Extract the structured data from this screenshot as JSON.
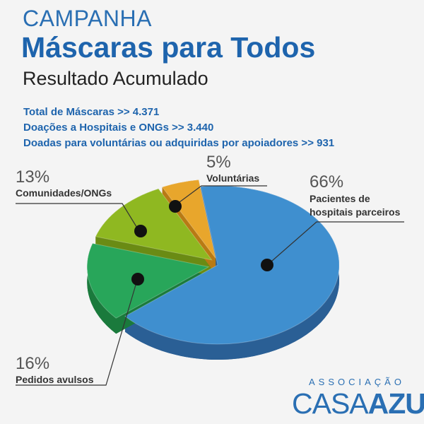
{
  "header": {
    "campaign": "CAMPANHA",
    "title": "Máscaras para Todos",
    "subtitle": "Resultado Acumulado"
  },
  "stats": [
    "Total de Máscaras >> 4.371",
    "Doações a Hospitais e ONGs >> 3.440",
    "Doadas para voluntárias ou adquiridas por apoiadores >> 931"
  ],
  "chart_data": {
    "type": "pie",
    "title": "",
    "slices": [
      {
        "label": "Pacientes de hospitais parceiros",
        "label_lines": [
          "Pacientes de",
          "hospitais parceiros"
        ],
        "percent": 66,
        "percent_label": "66%",
        "color": "#3f8fcf",
        "side_color": "#2a5f95"
      },
      {
        "label": "Pedidos avulsos",
        "label_lines": [
          "Pedidos avulsos"
        ],
        "percent": 16,
        "percent_label": "16%",
        "color": "#28a65a",
        "side_color": "#1a7a3c"
      },
      {
        "label": "Comunidades/ONGs",
        "label_lines": [
          "Comunidades/ONGs"
        ],
        "percent": 13,
        "percent_label": "13%",
        "color": "#8fb821",
        "side_color": "#6a8b14"
      },
      {
        "label": "Voluntárias",
        "label_lines": [
          "Voluntárias"
        ],
        "percent": 5,
        "percent_label": "5%",
        "color": "#e8a62c",
        "side_color": "#b87a14"
      }
    ]
  },
  "logo": {
    "top": "ASSOCIAÇÃO",
    "left": "CASA",
    "right": "AZUL"
  }
}
